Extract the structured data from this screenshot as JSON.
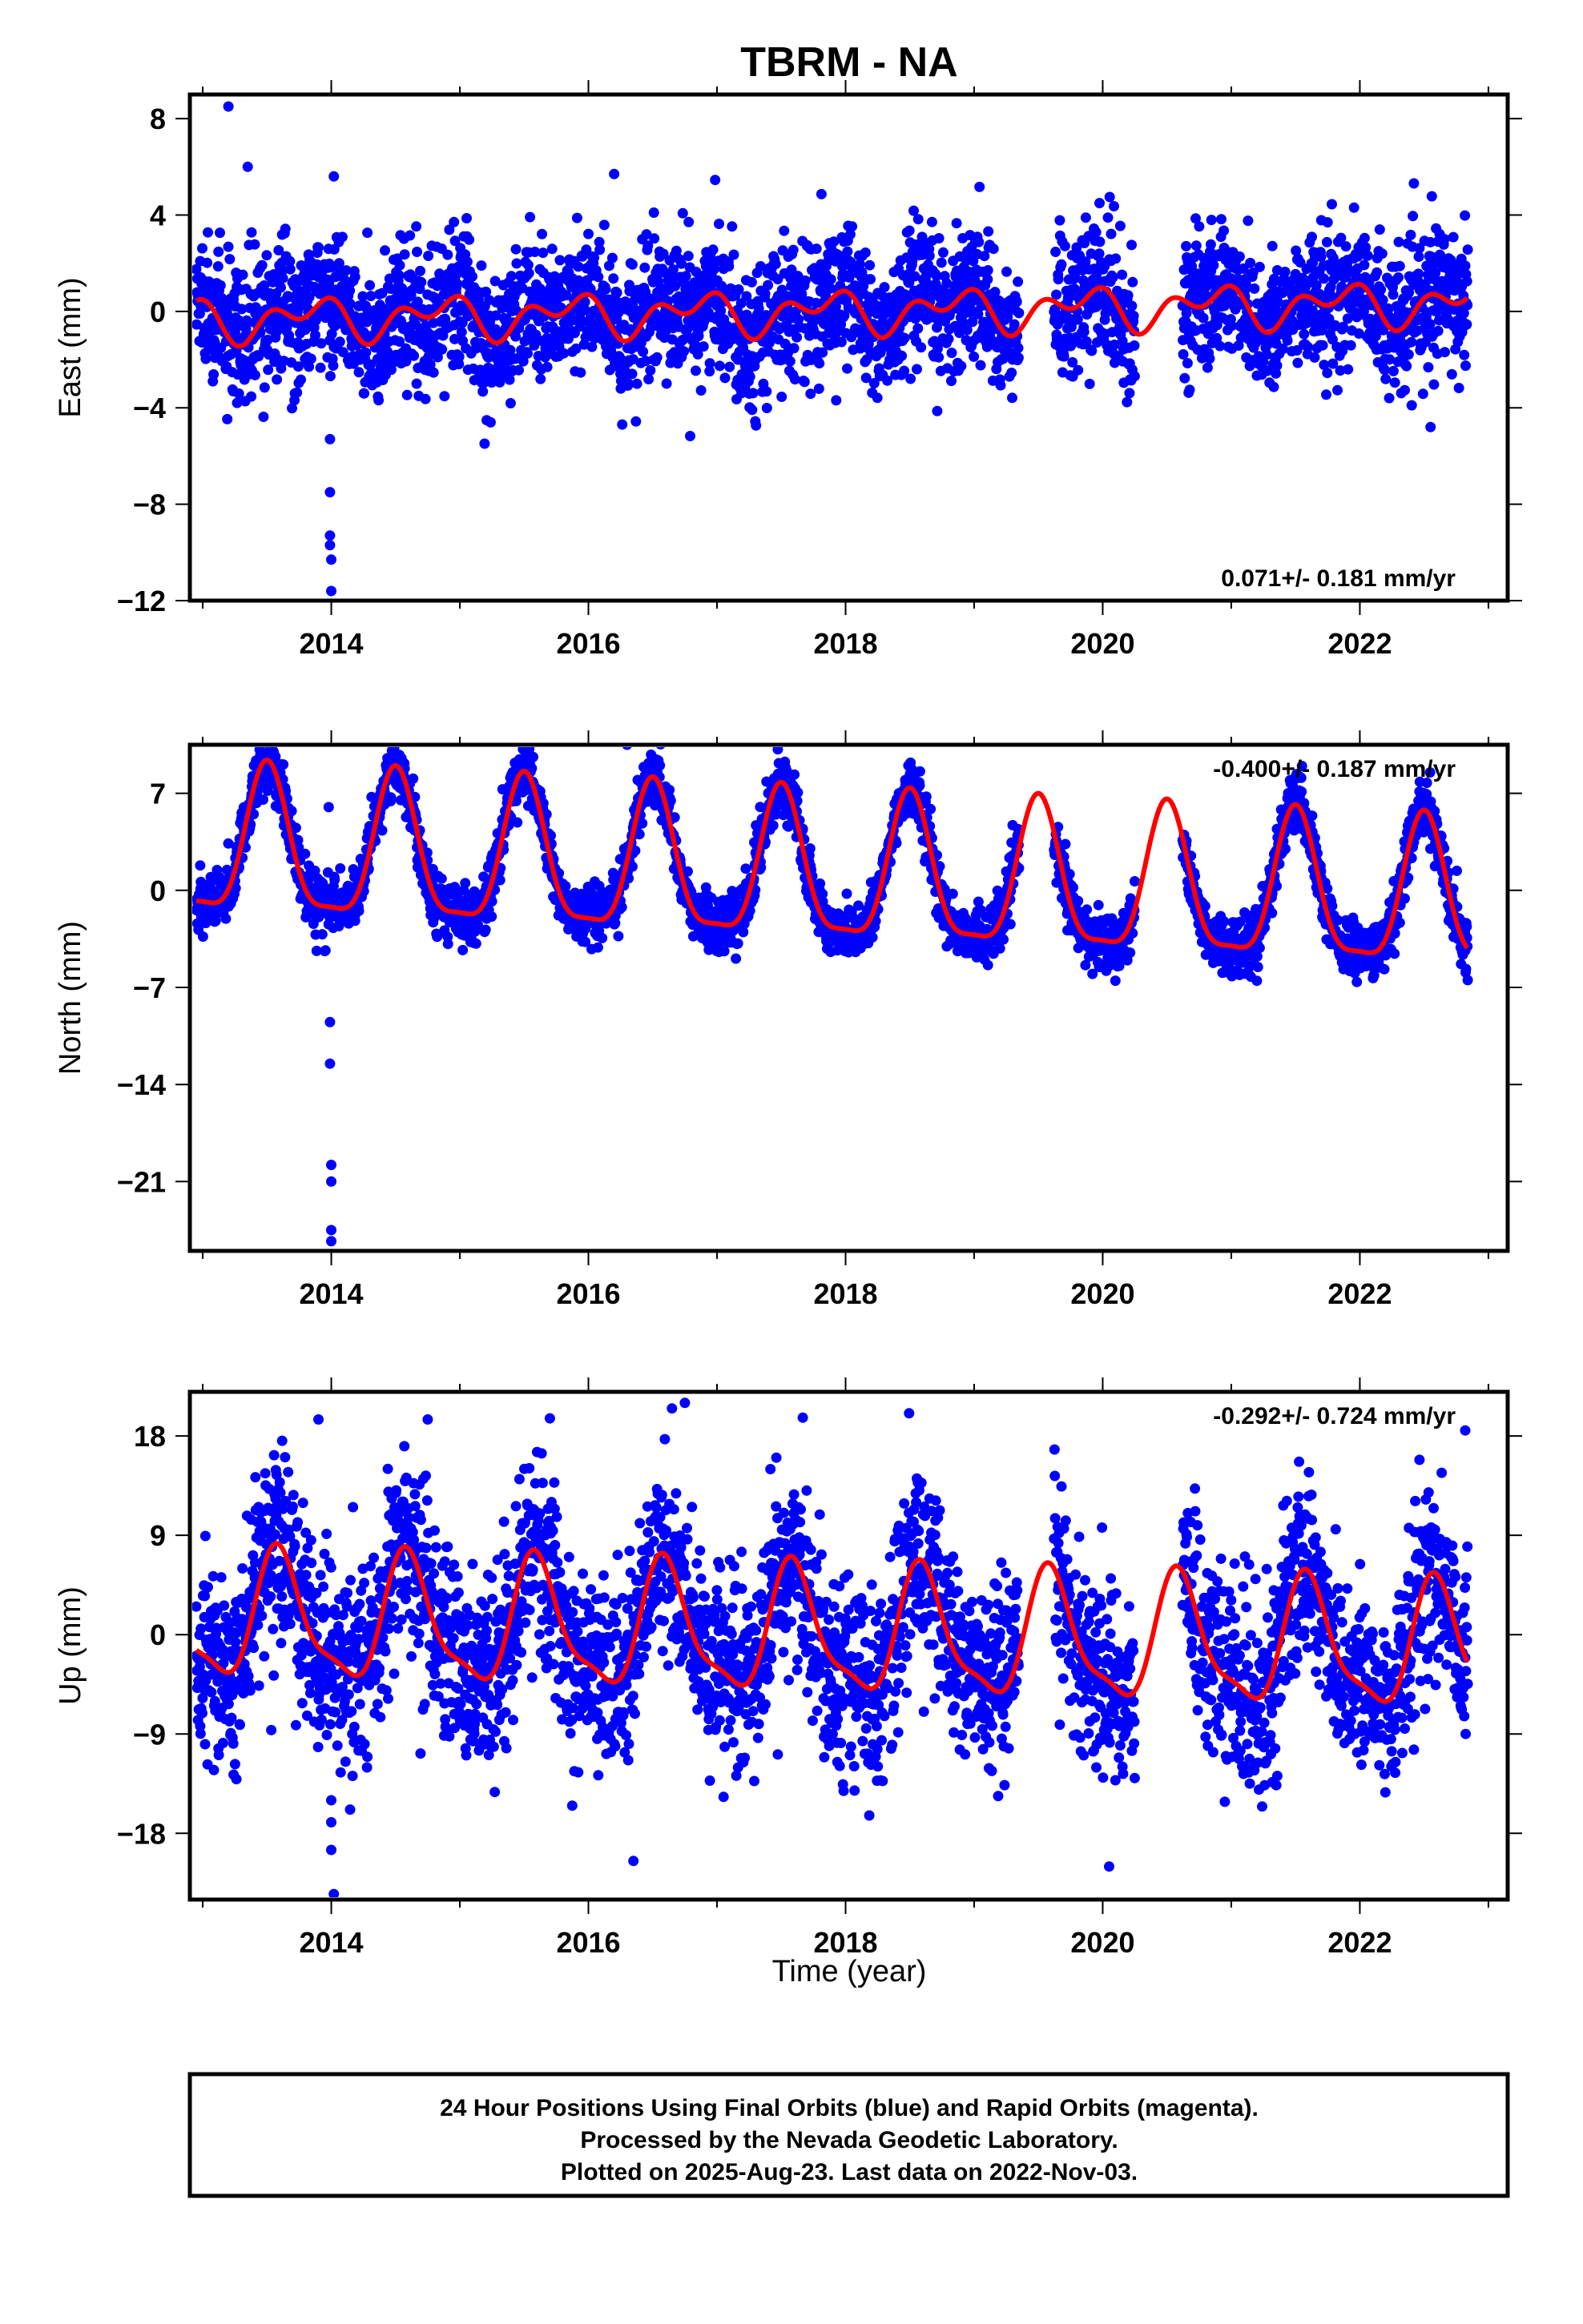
{
  "chart_data": [
    {
      "type": "scatter",
      "title": "TBRM - NA",
      "ylabel": "East (mm)",
      "xlim": [
        2012.9,
        2023.15
      ],
      "ylim": [
        -12,
        9
      ],
      "yticks": [
        8,
        4,
        0,
        -4,
        -8,
        -12
      ],
      "xticks": [
        2014,
        2016,
        2018,
        2020,
        2022
      ],
      "annotation": "0.071+/- 0.181 mm/yr",
      "annotation_position": "bottom-right",
      "trend_slope_mm_per_yr": 0.071,
      "fit_model": {
        "amp_annual": 0.6,
        "phase_annual": 2.6,
        "amp_semiannual": 0.55,
        "phase_semiannual": 1.3,
        "offset": 0.0
      },
      "noise_sd": 1.4,
      "outliers": [
        [
          2013.2,
          8.5
        ],
        [
          2013.35,
          6.0
        ],
        [
          2014.02,
          5.6
        ],
        [
          2013.99,
          -5.3
        ],
        [
          2013.99,
          -7.5
        ],
        [
          2013.99,
          -9.3
        ],
        [
          2013.99,
          -9.7
        ],
        [
          2014.0,
          -10.3
        ],
        [
          2014.0,
          -11.6
        ],
        [
          2016.2,
          5.7
        ],
        [
          2022.55,
          -4.8
        ]
      ],
      "series": [
        {
          "name": "Final Orbits",
          "color": "#0000ff"
        },
        {
          "name": "Fit",
          "color": "#ff0000"
        }
      ]
    },
    {
      "type": "scatter",
      "ylabel": "North (mm)",
      "xlim": [
        2012.9,
        2023.15
      ],
      "ylim": [
        -26,
        10.5
      ],
      "yticks": [
        7,
        0,
        -7,
        -14,
        -21
      ],
      "xticks": [
        2014,
        2016,
        2018,
        2020,
        2022
      ],
      "annotation": "-0.400+/- 0.187 mm/yr",
      "annotation_position": "top-right",
      "trend_slope_mm_per_yr": -0.4,
      "fit_model": {
        "amp_annual": 5.2,
        "phase_annual": 4.7,
        "amp_semiannual": 1.4,
        "phase_semiannual": 1.6,
        "offset": 1.0
      },
      "noise_sd": 1.0,
      "outliers": [
        [
          2013.98,
          6.0
        ],
        [
          2013.99,
          -9.5
        ],
        [
          2013.99,
          -12.5
        ],
        [
          2014.0,
          -19.8
        ],
        [
          2014.0,
          -21.0
        ],
        [
          2014.0,
          -24.5
        ],
        [
          2014.0,
          -25.3
        ],
        [
          2016.3,
          10.5
        ]
      ],
      "series": [
        {
          "name": "Final Orbits",
          "color": "#0000ff"
        },
        {
          "name": "Fit",
          "color": "#ff0000"
        }
      ]
    },
    {
      "type": "scatter",
      "ylabel": "Up (mm)",
      "xlabel": "Time (year)",
      "xlim": [
        2012.9,
        2023.15
      ],
      "ylim": [
        -24,
        22
      ],
      "yticks": [
        18,
        9,
        0,
        -9,
        -18
      ],
      "xticks": [
        2014,
        2016,
        2018,
        2020,
        2022
      ],
      "annotation": "-0.292+/- 0.724 mm/yr",
      "annotation_position": "top-right",
      "trend_slope_mm_per_yr": -0.292,
      "fit_model": {
        "amp_annual": 5.5,
        "phase_annual": 4.1,
        "amp_semiannual": 1.6,
        "phase_semiannual": 0.9,
        "offset": 0.0
      },
      "noise_sd": 4.3,
      "outliers": [
        [
          2013.9,
          19.5
        ],
        [
          2014.0,
          -15.0
        ],
        [
          2014.0,
          -17.0
        ],
        [
          2014.0,
          -19.5
        ],
        [
          2014.02,
          -23.5
        ],
        [
          2014.75,
          19.5
        ],
        [
          2015.7,
          19.6
        ],
        [
          2016.35,
          -20.5
        ],
        [
          2016.65,
          20.5
        ],
        [
          2016.75,
          21.0
        ],
        [
          2020.05,
          -21.0
        ],
        [
          2022.82,
          18.5
        ]
      ],
      "series": [
        {
          "name": "Final Orbits",
          "color": "#0000ff"
        },
        {
          "name": "Fit",
          "color": "#ff0000"
        }
      ]
    }
  ],
  "data_range": [
    2012.95,
    2022.84
  ],
  "data_gaps": [
    [
      2019.35,
      2019.62
    ],
    [
      2020.25,
      2020.62
    ]
  ],
  "caption": {
    "line1": "24 Hour Positions Using Final Orbits (blue) and Rapid Orbits (magenta).",
    "line2": "Processed by the Nevada Geodetic Laboratory.",
    "line3": "Plotted on 2025-Aug-23. Last data on 2022-Nov-03."
  }
}
